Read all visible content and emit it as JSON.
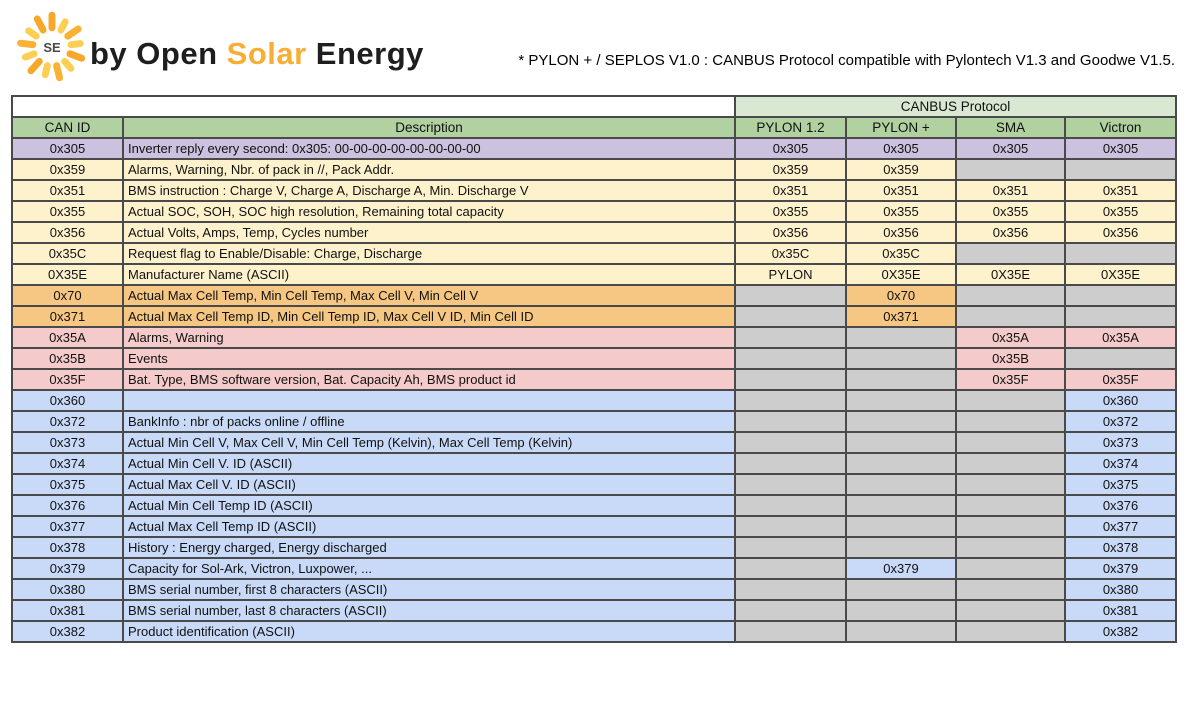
{
  "brand": {
    "logo_text": "SE",
    "prefix": "by Open ",
    "highlight": "Solar",
    "suffix": " Energy"
  },
  "note": "* PYLON + / SEPLOS V1.0 : CANBUS Protocol compatible with Pylontech V1.3 and Goodwe V1.5.",
  "colors": {
    "accent_orange": "#f8ae34",
    "header_light_green": "#d9e8d2",
    "header_green": "#b2d1a0",
    "purple": "#ccc2e0",
    "yellow": "#fdf2cc",
    "orange": "#f6c683",
    "pink": "#f5caca",
    "blue": "#c9daf8",
    "gray": "#cdcdcd",
    "border": "#4a4a4a"
  },
  "table": {
    "group_header": "CANBUS Protocol",
    "columns": [
      "CAN ID",
      "Description",
      "PYLON 1.2",
      "PYLON +",
      "SMA",
      "Victron"
    ],
    "rows": [
      {
        "id": "0x305",
        "description": "Inverter reply every second: 0x305: 00-00-00-00-00-00-00-00",
        "color": "purple",
        "values": [
          "0x305",
          "0x305",
          "0x305",
          "0x305"
        ]
      },
      {
        "id": "0x359",
        "description": "Alarms, Warning, Nbr. of pack in //, Pack Addr.",
        "color": "yellow",
        "values": [
          "0x359",
          "0x359",
          "",
          ""
        ]
      },
      {
        "id": "0x351",
        "description": "BMS instruction : Charge V, Charge A, Discharge A, Min. Discharge V",
        "color": "yellow",
        "values": [
          "0x351",
          "0x351",
          "0x351",
          "0x351"
        ]
      },
      {
        "id": "0x355",
        "description": "Actual SOC, SOH, SOC high resolution, Remaining total capacity",
        "color": "yellow",
        "values": [
          "0x355",
          "0x355",
          "0x355",
          "0x355"
        ]
      },
      {
        "id": "0x356",
        "description": "Actual Volts, Amps, Temp, Cycles number",
        "color": "yellow",
        "values": [
          "0x356",
          "0x356",
          "0x356",
          "0x356"
        ]
      },
      {
        "id": "0x35C",
        "description": "Request flag to Enable/Disable: Charge, Discharge",
        "color": "yellow",
        "values": [
          "0x35C",
          "0x35C",
          "",
          ""
        ]
      },
      {
        "id": "0X35E",
        "description": "Manufacturer Name (ASCII)",
        "color": "yellow",
        "values": [
          "PYLON",
          "0X35E",
          "0X35E",
          "0X35E"
        ]
      },
      {
        "id": "0x70",
        "description": "Actual Max Cell Temp, Min Cell Temp, Max Cell V, Min Cell V",
        "color": "orange",
        "values": [
          "",
          "0x70",
          "",
          ""
        ]
      },
      {
        "id": "0x371",
        "description": "Actual Max Cell Temp ID, Min Cell Temp ID, Max Cell V ID, Min Cell ID",
        "color": "orange",
        "values": [
          "",
          "0x371",
          "",
          ""
        ]
      },
      {
        "id": "0x35A",
        "description": "Alarms, Warning",
        "color": "pink",
        "values": [
          "",
          "",
          "0x35A",
          "0x35A"
        ]
      },
      {
        "id": "0x35B",
        "description": "Events",
        "color": "pink",
        "values": [
          "",
          "",
          "0x35B",
          ""
        ]
      },
      {
        "id": "0x35F",
        "description": "Bat. Type, BMS software version, Bat. Capacity Ah, BMS product id",
        "color": "pink",
        "values": [
          "",
          "",
          "0x35F",
          "0x35F"
        ]
      },
      {
        "id": "0x360",
        "description": "",
        "color": "blue",
        "values": [
          "",
          "",
          "",
          "0x360"
        ]
      },
      {
        "id": "0x372",
        "description": "BankInfo : nbr of packs online / offline",
        "color": "blue",
        "values": [
          "",
          "",
          "",
          "0x372"
        ]
      },
      {
        "id": "0x373",
        "description": "Actual Min Cell V, Max Cell V, Min Cell Temp (Kelvin), Max Cell Temp (Kelvin)",
        "color": "blue",
        "values": [
          "",
          "",
          "",
          "0x373"
        ]
      },
      {
        "id": "0x374",
        "description": "Actual Min Cell V. ID (ASCII)",
        "color": "blue",
        "values": [
          "",
          "",
          "",
          "0x374"
        ]
      },
      {
        "id": "0x375",
        "description": "Actual Max Cell V. ID (ASCII)",
        "color": "blue",
        "values": [
          "",
          "",
          "",
          "0x375"
        ]
      },
      {
        "id": "0x376",
        "description": "Actual Min Cell Temp ID (ASCII)",
        "color": "blue",
        "values": [
          "",
          "",
          "",
          "0x376"
        ]
      },
      {
        "id": "0x377",
        "description": "Actual Max Cell Temp ID (ASCII)",
        "color": "blue",
        "values": [
          "",
          "",
          "",
          "0x377"
        ]
      },
      {
        "id": "0x378",
        "description": "History : Energy charged, Energy discharged",
        "color": "blue",
        "values": [
          "",
          "",
          "",
          "0x378"
        ]
      },
      {
        "id": "0x379",
        "description": "Capacity for Sol-Ark, Victron, Luxpower, ...",
        "color": "blue",
        "values": [
          "",
          "0x379",
          "",
          "0x379"
        ]
      },
      {
        "id": "0x380",
        "description": "BMS serial number, first 8 characters (ASCII)",
        "color": "blue",
        "values": [
          "",
          "",
          "",
          "0x380"
        ]
      },
      {
        "id": "0x381",
        "description": "BMS serial number, last 8 characters (ASCII)",
        "color": "blue",
        "values": [
          "",
          "",
          "",
          "0x381"
        ]
      },
      {
        "id": "0x382",
        "description": "Product identification (ASCII)",
        "color": "blue",
        "values": [
          "",
          "",
          "",
          "0x382"
        ]
      }
    ]
  }
}
